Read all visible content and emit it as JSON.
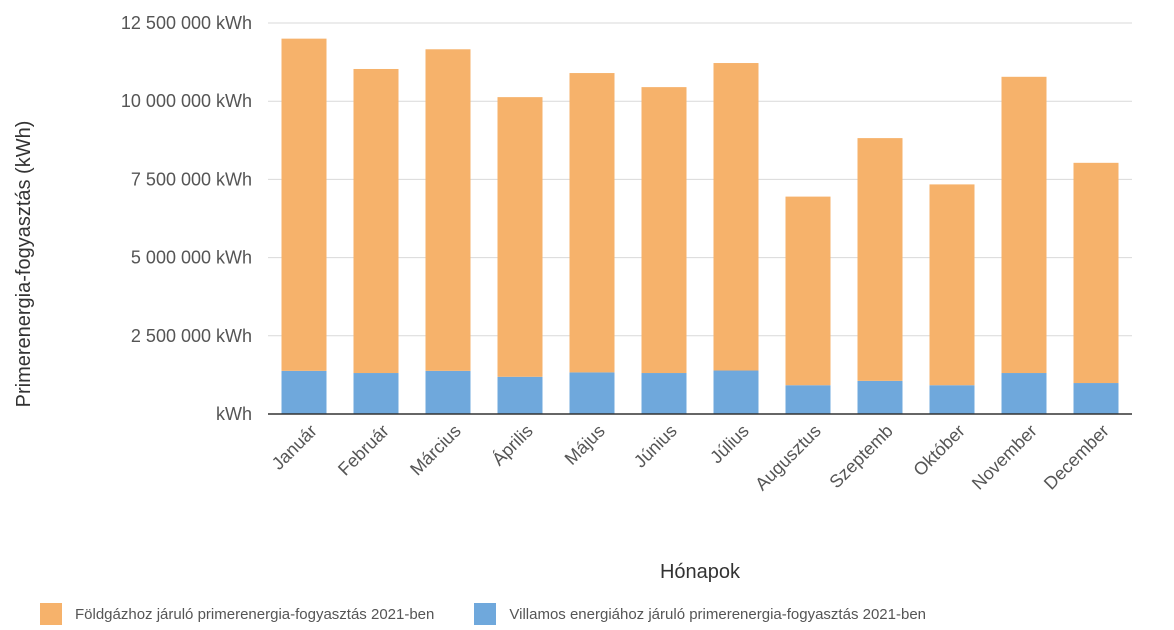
{
  "chart_data": {
    "type": "bar",
    "stacked": true,
    "categories": [
      "Január",
      "Február",
      "Március",
      "Április",
      "Május",
      "Június",
      "Július",
      "Augusztus",
      "Szeptemb",
      "Október",
      "November",
      "December"
    ],
    "series": [
      {
        "name": "Villamos energiához járuló primerenergia-fogyasztás 2021-ben",
        "color": "#6fa8dc",
        "values": [
          1380000,
          1310000,
          1380000,
          1190000,
          1330000,
          1310000,
          1390000,
          920000,
          1060000,
          920000,
          1310000,
          990000
        ]
      },
      {
        "name": "Földgázhoz járuló primerenergia-fogyasztás 2021-ben",
        "color": "#f6b26b",
        "values": [
          10620000,
          9720000,
          10280000,
          8940000,
          9570000,
          9140000,
          9830000,
          6030000,
          7760000,
          6420000,
          9470000,
          7040000
        ]
      }
    ],
    "xlabel": "Hónapok",
    "ylabel": "Primerenergia-fogyasztás (kWh)",
    "ylim": [
      0,
      12500000
    ],
    "yticks": [
      "kWh",
      "2 500 000  kWh",
      "5 000 000  kWh",
      "7 500 000  kWh",
      "10 000 000  kWh",
      "12 500 000  kWh"
    ],
    "grid": true,
    "legend": "bottom"
  }
}
